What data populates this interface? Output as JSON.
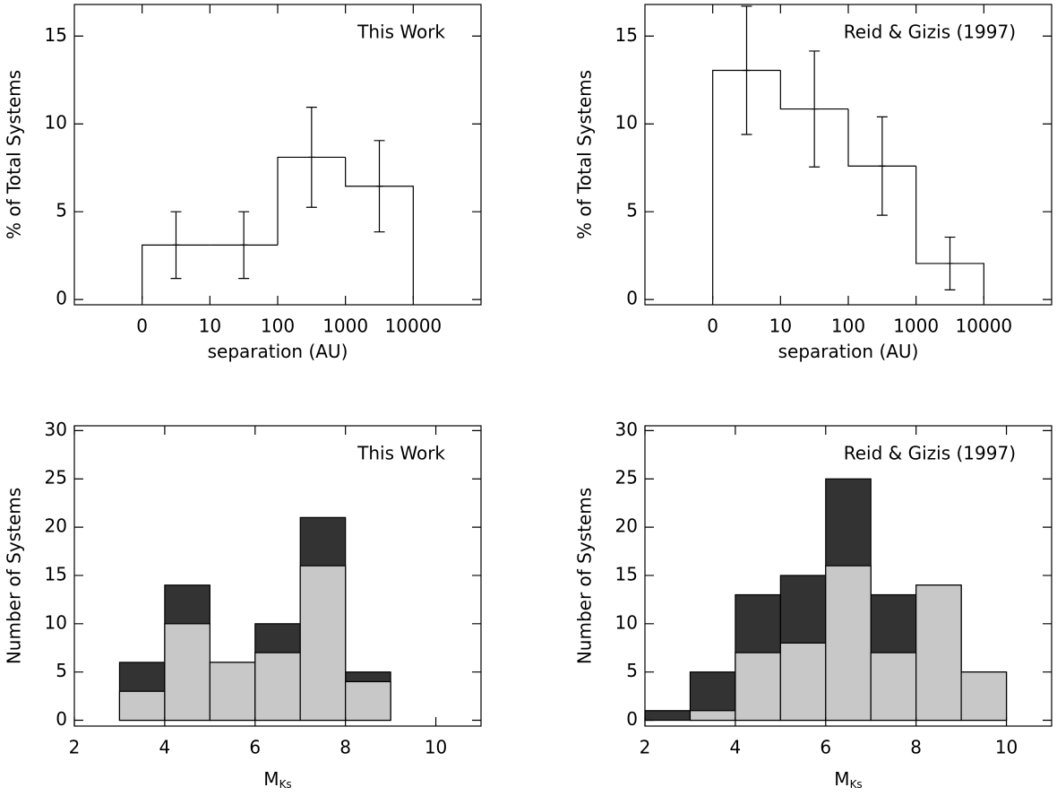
{
  "chart_data": [
    {
      "type": "histogram",
      "annotation": "This Work",
      "x_label": "separation (AU)",
      "y_label": "% of Total Systems",
      "xlim": [
        -1,
        5
      ],
      "ylim": [
        -0.3,
        16.8
      ],
      "xticks": [
        0,
        {
          "value": 1,
          "label": "10"
        },
        {
          "value": 2,
          "label": "100"
        },
        {
          "value": 3,
          "label": "1000"
        },
        {
          "value": 4,
          "label": "10000"
        }
      ],
      "yticks": [
        0,
        5,
        10,
        15
      ],
      "bins": [
        0,
        1,
        2,
        3,
        4
      ],
      "values": [
        3.1,
        3.1,
        8.1,
        6.45
      ],
      "errors": [
        1.9,
        1.9,
        2.85,
        2.6
      ]
    },
    {
      "type": "histogram",
      "annotation": "Reid & Gizis (1997)",
      "x_label": "separation (AU)",
      "y_label": "% of Total Systems",
      "xlim": [
        -1,
        5
      ],
      "ylim": [
        -0.3,
        16.8
      ],
      "xticks": [
        0,
        {
          "value": 1,
          "label": "10"
        },
        {
          "value": 2,
          "label": "100"
        },
        {
          "value": 3,
          "label": "1000"
        },
        {
          "value": 4,
          "label": "10000"
        }
      ],
      "yticks": [
        0,
        5,
        10,
        15
      ],
      "bins": [
        0,
        1,
        2,
        3,
        4
      ],
      "values": [
        13.05,
        10.85,
        7.6,
        2.05
      ],
      "errors": [
        3.65,
        3.3,
        2.8,
        1.5
      ]
    },
    {
      "type": "overlaid-histogram",
      "annotation": "This Work",
      "x_label": "M",
      "x_label_subscript": "Ks",
      "y_label": "Number of Systems",
      "xlim": [
        2,
        11
      ],
      "ylim": [
        -0.6,
        30.5
      ],
      "xticks": [
        2,
        4,
        6,
        8,
        10
      ],
      "yticks": [
        0,
        5,
        10,
        15,
        20,
        25,
        30
      ],
      "bins": [
        2,
        3,
        4,
        5,
        6,
        7,
        8,
        9,
        10,
        11
      ],
      "series": [
        {
          "color": "#333333",
          "values": [
            0,
            6,
            14,
            6,
            10,
            21,
            5,
            0,
            0
          ]
        },
        {
          "color": "#c8c8c8",
          "values": [
            0,
            3,
            10,
            6,
            7,
            16,
            4,
            0,
            0
          ]
        }
      ]
    },
    {
      "type": "overlaid-histogram",
      "annotation": "Reid & Gizis (1997)",
      "x_label": "M",
      "x_label_subscript": "Ks",
      "y_label": "Number of Systems",
      "xlim": [
        2,
        11
      ],
      "ylim": [
        -0.6,
        30.5
      ],
      "xticks": [
        2,
        4,
        6,
        8,
        10
      ],
      "yticks": [
        0,
        5,
        10,
        15,
        20,
        25,
        30
      ],
      "bins": [
        2,
        3,
        4,
        5,
        6,
        7,
        8,
        9,
        10,
        11
      ],
      "series": [
        {
          "color": "#333333",
          "values": [
            1,
            5,
            13,
            15,
            25,
            13,
            14,
            5,
            0
          ]
        },
        {
          "color": "#c8c8c8",
          "values": [
            0,
            1,
            7,
            8,
            16,
            7,
            14,
            5,
            0
          ]
        }
      ]
    }
  ]
}
